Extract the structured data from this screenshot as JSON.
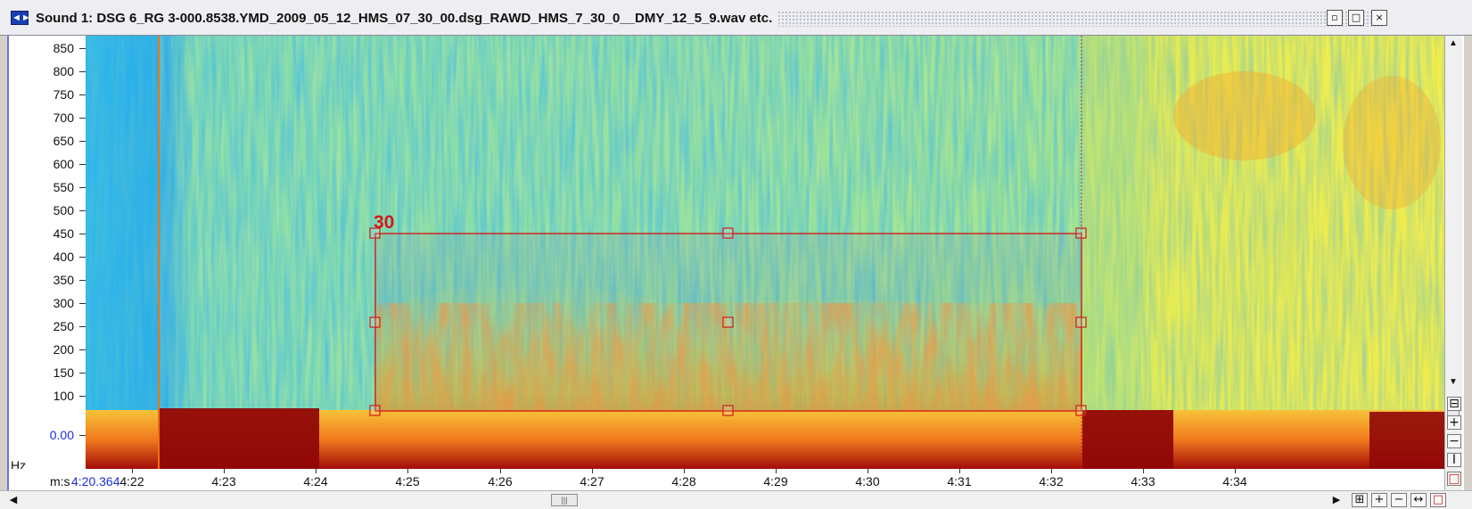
{
  "window": {
    "title": "Sound 1: DSG 6_RG 3-000.8538.YMD_2009_05_12_HMS_07_30_00.dsg_RAWD_HMS_7_30_0__DMY_12_5_9.wav etc.",
    "icons": [
      "sound-window-icon",
      "restore-icon",
      "maximize-icon",
      "close-icon"
    ]
  },
  "spectrogram": {
    "y_unit": "Hz",
    "y_ticks": [
      "850",
      "800",
      "750",
      "700",
      "650",
      "600",
      "550",
      "500",
      "450",
      "400",
      "350",
      "300",
      "250",
      "200",
      "150",
      "100",
      "0.00"
    ],
    "x_unit": "m:s",
    "x_start": "4:20.364",
    "x_ticks": [
      "4:22",
      "4:23",
      "4:24",
      "4:25",
      "4:26",
      "4:27",
      "4:28",
      "4:29",
      "4:30",
      "4:31",
      "4:32",
      "4:33",
      "4:34"
    ],
    "selection": {
      "label": "30",
      "color": "#d11a1a"
    }
  },
  "colors": {
    "window_border": "#6e74d6",
    "axis_start": "#1d2fd8",
    "selection": "#d11a1a"
  },
  "controls": {
    "vertical": [
      "scroll-up",
      "scroll-down",
      "zoom-in-vertical",
      "zoom-out-vertical",
      "fit-vertical"
    ],
    "horizontal": [
      "scroll-left",
      "scroll-right",
      "zoom-in-horizontal",
      "zoom-out-horizontal",
      "fit-horizontal"
    ]
  }
}
